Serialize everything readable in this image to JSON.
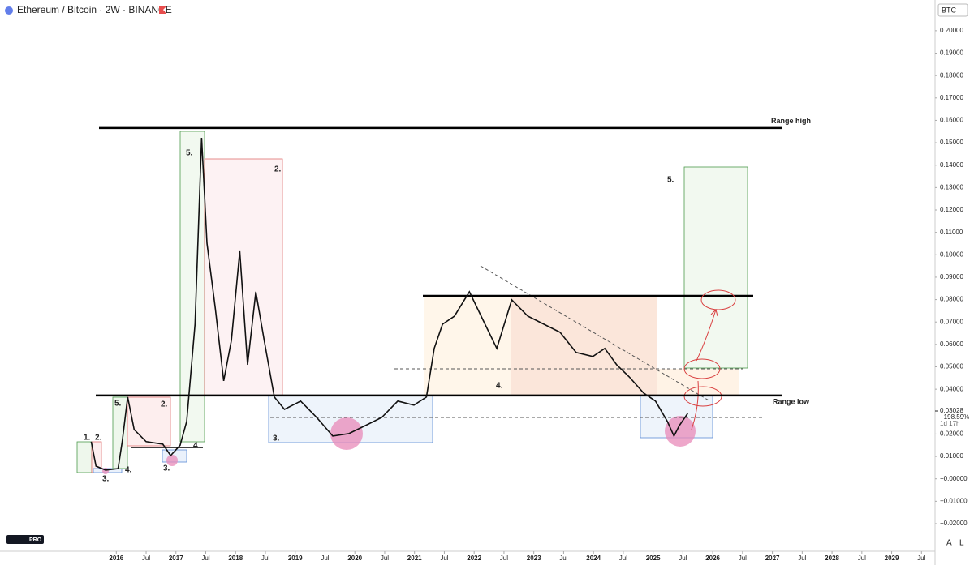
{
  "chart_data": {
    "type": "line",
    "title": "Ethereum / Bitcoin · 2W · BINANCE",
    "currency": "BTC",
    "color": "#111111",
    "x": [
      2015.58,
      2015.66,
      2015.82,
      2016.03,
      2016.1,
      2016.19,
      2016.3,
      2016.5,
      2016.78,
      2016.91,
      2017.07,
      2017.18,
      2017.32,
      2017.43,
      2017.52,
      2017.66,
      2017.8,
      2017.93,
      2018.07,
      2018.2,
      2018.34,
      2018.48,
      2018.65,
      2018.82,
      2019.09,
      2019.36,
      2019.63,
      2019.9,
      2020.18,
      2020.45,
      2020.72,
      2020.99,
      2021.2,
      2021.33,
      2021.47,
      2021.67,
      2021.92,
      2022.15,
      2022.38,
      2022.63,
      2022.9,
      2023.17,
      2023.44,
      2023.71,
      2023.99,
      2024.19,
      2024.39,
      2024.6,
      2024.84,
      2025.04,
      2025.24,
      2025.35,
      2025.44,
      2025.58
    ],
    "values": [
      0.0166,
      0.0057,
      0.0039,
      0.0046,
      0.0166,
      0.0365,
      0.022,
      0.0166,
      0.0155,
      0.0104,
      0.015,
      0.0256,
      0.069,
      0.1522,
      0.1052,
      0.076,
      0.0437,
      0.0618,
      0.1016,
      0.0509,
      0.0835,
      0.0618,
      0.0365,
      0.031,
      0.0347,
      0.0274,
      0.0191,
      0.0202,
      0.0238,
      0.0274,
      0.0347,
      0.0329,
      0.0365,
      0.0582,
      0.069,
      0.0726,
      0.0835,
      0.0708,
      0.0582,
      0.0799,
      0.0726,
      0.069,
      0.0654,
      0.0564,
      0.0546,
      0.0582,
      0.0509,
      0.0455,
      0.0383,
      0.0347,
      0.0256,
      0.0191,
      0.0238,
      0.0292
    ],
    "xlim": [
      2014.05,
      2029.7
    ],
    "xticks": [
      {
        "value": 2016,
        "label": "2016"
      },
      {
        "value": 2016.5,
        "label": "Jul"
      },
      {
        "value": 2017,
        "label": "2017"
      },
      {
        "value": 2017.5,
        "label": "Jul"
      },
      {
        "value": 2018,
        "label": "2018"
      },
      {
        "value": 2018.5,
        "label": "Jul"
      },
      {
        "value": 2019,
        "label": "2019"
      },
      {
        "value": 2019.5,
        "label": "Jul"
      },
      {
        "value": 2020,
        "label": "2020"
      },
      {
        "value": 2020.5,
        "label": "Jul"
      },
      {
        "value": 2021,
        "label": "2021"
      },
      {
        "value": 2021.5,
        "label": "Jul"
      },
      {
        "value": 2022,
        "label": "2022"
      },
      {
        "value": 2022.5,
        "label": "Jul"
      },
      {
        "value": 2023,
        "label": "2023"
      },
      {
        "value": 2023.5,
        "label": "Jul"
      },
      {
        "value": 2024,
        "label": "2024"
      },
      {
        "value": 2024.5,
        "label": "Jul"
      },
      {
        "value": 2025,
        "label": "2025"
      },
      {
        "value": 2025.5,
        "label": "Jul"
      },
      {
        "value": 2026,
        "label": "2026"
      },
      {
        "value": 2026.5,
        "label": "Jul"
      },
      {
        "value": 2027,
        "label": "2027"
      },
      {
        "value": 2027.5,
        "label": "Jul"
      },
      {
        "value": 2028,
        "label": "2028"
      },
      {
        "value": 2028.5,
        "label": "Jul"
      },
      {
        "value": 2029,
        "label": "2029"
      },
      {
        "value": 2029.5,
        "label": "Jul"
      }
    ],
    "ylim": [
      -0.0323,
      0.2137
    ],
    "yticks": [
      {
        "value": 0.2,
        "label": "0.20000"
      },
      {
        "value": 0.19,
        "label": "0.19000"
      },
      {
        "value": 0.18,
        "label": "0.18000"
      },
      {
        "value": 0.17,
        "label": "0.17000"
      },
      {
        "value": 0.16,
        "label": "0.16000"
      },
      {
        "value": 0.15,
        "label": "0.15000"
      },
      {
        "value": 0.14,
        "label": "0.14000"
      },
      {
        "value": 0.13,
        "label": "0.13000"
      },
      {
        "value": 0.12,
        "label": "0.12000"
      },
      {
        "value": 0.11,
        "label": "0.11000"
      },
      {
        "value": 0.1,
        "label": "0.10000"
      },
      {
        "value": 0.09,
        "label": "0.09000"
      },
      {
        "value": 0.08,
        "label": "0.08000"
      },
      {
        "value": 0.07,
        "label": "0.07000"
      },
      {
        "value": 0.06,
        "label": "0.06000"
      },
      {
        "value": 0.05,
        "label": "0.05000"
      },
      {
        "value": 0.04,
        "label": "0.04000"
      },
      {
        "value": 0.02,
        "label": "0.02000"
      },
      {
        "value": 0.01,
        "label": "0.01000"
      },
      {
        "value": 0,
        "label": "−0.00000"
      },
      {
        "value": -0.01,
        "label": "−0.01000"
      },
      {
        "value": -0.02,
        "label": "−0.02000"
      }
    ],
    "last_price": {
      "value": 0.03028,
      "label": "0.03028",
      "change": "+198.59%",
      "countdown": "1d 17h"
    },
    "levels": [
      {
        "label": "Range high",
        "value": 0.1566
      },
      {
        "label": "Range low",
        "value": 0.0372
      }
    ],
    "annotations": [
      "1.",
      "2.",
      "3.",
      "4.",
      "5.",
      "2.",
      "3.",
      "4.",
      "5.",
      "2.",
      "3.",
      "4.",
      "5."
    ],
    "axis_buttons": [
      "A",
      "L"
    ],
    "logo": "PRO"
  }
}
